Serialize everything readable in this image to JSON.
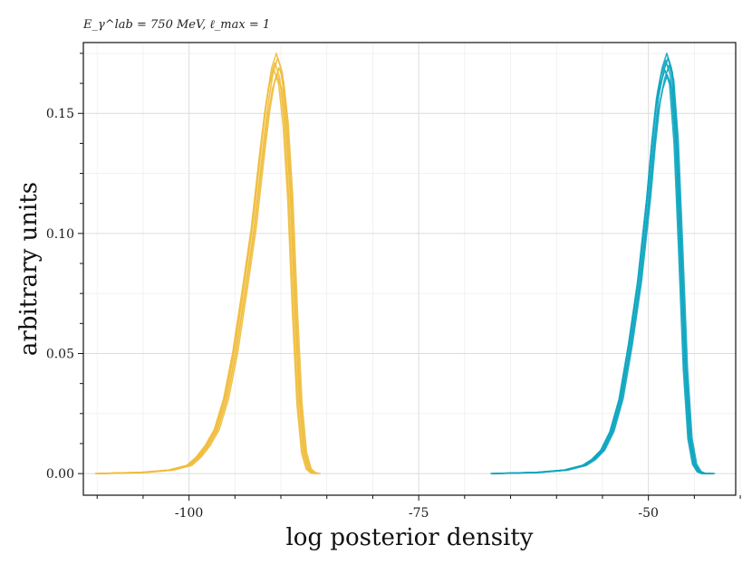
{
  "chart_data": {
    "type": "line",
    "title": "E_γ^lab = 750 MeV, ℓ_max = 1",
    "xlabel": "log posterior density",
    "ylabel": "arbitrary units",
    "xlim": [
      -111.5,
      -40.5
    ],
    "ylim": [
      -0.009,
      0.1795
    ],
    "grid": true,
    "x_ticks": [
      -100,
      -75,
      -50
    ],
    "x_tick_labels": [
      "-100",
      "-75",
      "-50"
    ],
    "y_ticks": [
      0.0,
      0.05,
      0.1,
      0.15
    ],
    "y_tick_labels": [
      "0.00",
      "0.05",
      "0.10",
      "0.15"
    ],
    "series_colors": [
      "#f0bd3c",
      "#0ea5c0"
    ],
    "groups": [
      {
        "color": "#f0bd3c",
        "n_chains": 6,
        "x": [
          -110,
          -105,
          -102,
          -100,
          -99,
          -98,
          -97,
          -96,
          -95,
          -94,
          -93,
          -92,
          -91.5,
          -91,
          -90.5,
          -90,
          -89.5,
          -89,
          -88.5,
          -88,
          -87.5,
          -87,
          -86.5,
          -86
        ],
        "y": [
          0.0,
          0.0005,
          0.0015,
          0.0035,
          0.007,
          0.012,
          0.019,
          0.032,
          0.052,
          0.078,
          0.105,
          0.14,
          0.156,
          0.168,
          0.174,
          0.168,
          0.15,
          0.118,
          0.07,
          0.03,
          0.009,
          0.002,
          0.0003,
          0.0
        ],
        "peaks": [
          0.175,
          0.173,
          0.171,
          0.169,
          0.168,
          0.166
        ],
        "shifts": [
          0.0,
          0.15,
          -0.15,
          0.3,
          -0.25,
          0.08
        ]
      },
      {
        "color": "#0ea5c0",
        "n_chains": 6,
        "x": [
          -67,
          -62,
          -59,
          -57,
          -56,
          -55,
          -54,
          -53,
          -52,
          -51,
          -50.5,
          -50,
          -49.5,
          -49,
          -48.5,
          -48,
          -47.5,
          -47,
          -46.5,
          -46,
          -45.5,
          -45,
          -44.5,
          -44,
          -43
        ],
        "y": [
          0.0,
          0.0005,
          0.0015,
          0.0035,
          0.006,
          0.01,
          0.018,
          0.032,
          0.055,
          0.082,
          0.1,
          0.118,
          0.14,
          0.158,
          0.168,
          0.174,
          0.168,
          0.142,
          0.095,
          0.045,
          0.015,
          0.004,
          0.0008,
          0.0,
          0.0
        ],
        "peaks": [
          0.175,
          0.173,
          0.172,
          0.17,
          0.168,
          0.166
        ],
        "shifts": [
          0.0,
          0.12,
          -0.12,
          0.25,
          -0.2,
          0.06
        ]
      }
    ]
  }
}
